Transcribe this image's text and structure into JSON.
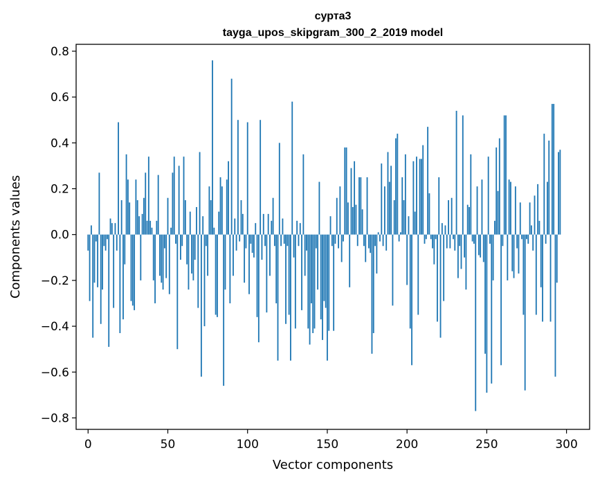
{
  "chart_data": {
    "type": "bar",
    "title": "сурта3",
    "subtitle": "tayga_upos_skipgram_300_2_2019 model",
    "xlabel": "Vector components",
    "ylabel": "Components values",
    "xlim": [
      -7.5,
      314.5
    ],
    "ylim": [
      -0.85,
      0.83
    ],
    "xticks": [
      0,
      50,
      100,
      150,
      200,
      250,
      300
    ],
    "xtick_labels": [
      "0",
      "50",
      "100",
      "150",
      "200",
      "250",
      "300"
    ],
    "yticks": [
      0.8,
      0.6,
      0.4,
      0.2,
      0.0,
      -0.2,
      -0.4,
      -0.6,
      -0.8
    ],
    "ytick_labels": [
      "0.8",
      "0.6",
      "0.4",
      "0.2",
      "0.0",
      "−0.2",
      "−0.4",
      "−0.6",
      "−0.8"
    ],
    "color": "#1f77b4",
    "series": [
      {
        "name": "components",
        "values": [
          -0.07,
          -0.29,
          0.04,
          -0.45,
          -0.21,
          -0.03,
          -0.23,
          0.27,
          -0.39,
          -0.24,
          -0.05,
          -0.07,
          -0.02,
          -0.49,
          0.07,
          0.05,
          -0.32,
          0.05,
          -0.07,
          0.49,
          -0.43,
          0.15,
          -0.37,
          -0.13,
          0.35,
          0.24,
          0.14,
          -0.29,
          -0.31,
          -0.33,
          0.24,
          0.15,
          0.08,
          -0.2,
          0.09,
          0.16,
          0.27,
          0.06,
          0.34,
          0.06,
          0.03,
          -0.2,
          -0.3,
          0.06,
          0.26,
          -0.18,
          -0.21,
          -0.24,
          -0.06,
          -0.19,
          0.16,
          -0.26,
          0.03,
          0.27,
          0.34,
          -0.04,
          -0.5,
          0.3,
          -0.11,
          -0.05,
          0.34,
          0.15,
          -0.13,
          -0.24,
          0.1,
          -0.17,
          -0.2,
          -0.11,
          0.12,
          -0.32,
          0.36,
          -0.62,
          0.08,
          -0.4,
          -0.05,
          -0.18,
          0.21,
          0.15,
          0.76,
          0.03,
          -0.35,
          -0.36,
          0.1,
          0.25,
          0.21,
          -0.66,
          -0.24,
          0.24,
          0.32,
          -0.3,
          0.68,
          -0.18,
          0.07,
          -0.07,
          0.5,
          -0.03,
          0.15,
          0.09,
          -0.21,
          -0.06,
          0.49,
          -0.26,
          -0.04,
          -0.08,
          -0.1,
          0.05,
          -0.36,
          -0.47,
          0.5,
          -0.11,
          0.09,
          -0.05,
          -0.34,
          0.09,
          -0.18,
          0.06,
          0.16,
          -0.05,
          -0.3,
          -0.55,
          0.4,
          -0.05,
          0.07,
          -0.04,
          -0.39,
          -0.05,
          -0.35,
          -0.55,
          0.58,
          -0.1,
          -0.41,
          0.06,
          -0.05,
          0.05,
          -0.33,
          0.35,
          -0.18,
          -0.07,
          -0.41,
          -0.48,
          -0.3,
          -0.43,
          -0.41,
          -0.06,
          -0.24,
          0.23,
          -0.37,
          -0.46,
          -0.29,
          -0.32,
          -0.55,
          -0.42,
          0.08,
          -0.05,
          -0.42,
          -0.04,
          0.16,
          -0.06,
          0.21,
          -0.12,
          -0.03,
          0.38,
          0.38,
          0.14,
          -0.23,
          0.29,
          0.12,
          0.32,
          0.13,
          -0.05,
          0.25,
          0.25,
          0.11,
          -0.05,
          -0.12,
          0.25,
          -0.06,
          -0.08,
          -0.52,
          -0.43,
          -0.05,
          -0.17,
          0.01,
          -0.03,
          0.31,
          -0.05,
          0.21,
          -0.07,
          0.36,
          0.23,
          0.3,
          -0.31,
          0.15,
          0.42,
          0.44,
          -0.03,
          0.01,
          0.25,
          0.15,
          0.35,
          -0.22,
          0.08,
          -0.41,
          -0.57,
          0.32,
          0.1,
          0.34,
          -0.35,
          0.33,
          0.33,
          0.39,
          -0.04,
          -0.02,
          0.47,
          0.18,
          -0.02,
          -0.06,
          -0.13,
          -0.02,
          -0.38,
          0.25,
          -0.45,
          0.05,
          -0.29,
          0.04,
          -0.06,
          0.15,
          -0.06,
          0.16,
          -0.02,
          -0.07,
          0.54,
          -0.19,
          -0.05,
          -0.15,
          0.52,
          -0.1,
          -0.24,
          0.13,
          0.12,
          0.35,
          -0.03,
          -0.04,
          -0.77,
          0.21,
          -0.09,
          -0.1,
          0.24,
          -0.12,
          -0.52,
          -0.69,
          0.34,
          -0.04,
          -0.65,
          -0.2,
          0.06,
          0.38,
          0.19,
          0.42,
          -0.57,
          -0.05,
          0.52,
          0.52,
          -0.2,
          0.24,
          0.23,
          -0.16,
          -0.19,
          0.21,
          -0.06,
          -0.17,
          0.14,
          -0.02,
          -0.35,
          -0.68,
          -0.02,
          -0.04,
          0.14,
          0.04,
          -0.07,
          0.17,
          -0.35,
          0.22,
          0.06,
          -0.23,
          -0.38,
          0.44,
          -0.04,
          0.23,
          0.41,
          -0.38,
          0.57,
          0.57,
          -0.62,
          -0.21,
          0.36,
          0.37
        ]
      }
    ]
  }
}
